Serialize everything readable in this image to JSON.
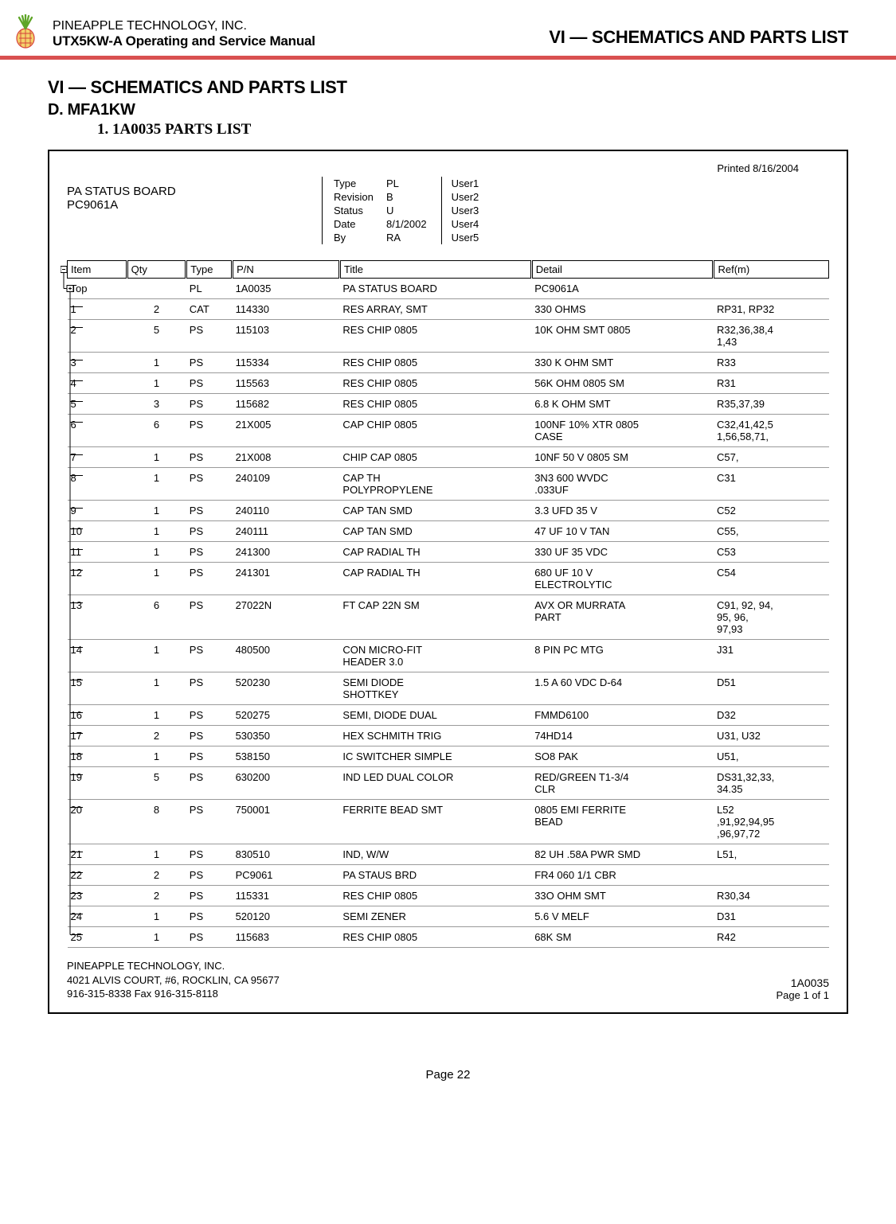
{
  "header": {
    "company": "PINEAPPLE TECHNOLOGY, INC.",
    "manual": "UTX5KW-A Operating and Service Manual",
    "section_right": "VI — SCHEMATICS AND PARTS LIST"
  },
  "headings": {
    "h1": "VI — SCHEMATICS AND PARTS LIST",
    "h2": "D. MFA1KW",
    "h3": "1. 1A0035 PARTS LIST"
  },
  "frame": {
    "printed": "Printed 8/16/2004",
    "board_name": "PA STATUS BOARD",
    "board_code": "PC9061A",
    "meta": {
      "Type": "PL",
      "Revision": "B",
      "Status": "U",
      "Date": "8/1/2002",
      "By": "RA"
    },
    "users": [
      "User1",
      "User2",
      "User3",
      "User4",
      "User5"
    ]
  },
  "columns": [
    "Item",
    "Qty",
    "Type",
    "P/N",
    "Title",
    "Detail",
    "Ref(m)"
  ],
  "top_row": {
    "item": "Top",
    "qty": "",
    "type": "PL",
    "pn": "1A0035",
    "title": "PA STATUS BOARD",
    "detail": "PC9061A",
    "ref": ""
  },
  "rows": [
    {
      "item": "1",
      "qty": "2",
      "type": "CAT",
      "pn": "114330",
      "title": "RES ARRAY, SMT",
      "detail": "330 OHMS",
      "ref": "RP31, RP32"
    },
    {
      "item": "2",
      "qty": "5",
      "type": "PS",
      "pn": "115103",
      "title": "RES CHIP 0805",
      "detail": "10K OHM SMT 0805",
      "ref": "R32,36,38,4\n1,43"
    },
    {
      "item": "3",
      "qty": "1",
      "type": "PS",
      "pn": "115334",
      "title": "RES CHIP 0805",
      "detail": "330 K OHM SMT",
      "ref": "R33"
    },
    {
      "item": "4",
      "qty": "1",
      "type": "PS",
      "pn": "115563",
      "title": "RES CHIP 0805",
      "detail": "56K OHM 0805 SM",
      "ref": "R31"
    },
    {
      "item": "5",
      "qty": "3",
      "type": "PS",
      "pn": "115682",
      "title": "RES CHIP 0805",
      "detail": "6.8 K OHM SMT",
      "ref": "R35,37,39"
    },
    {
      "item": "6",
      "qty": "6",
      "type": "PS",
      "pn": "21X005",
      "title": "CAP CHIP 0805",
      "detail": "100NF 10%  XTR 0805\nCASE",
      "ref": "C32,41,42,5\n1,56,58,71,"
    },
    {
      "item": "7",
      "qty": "1",
      "type": "PS",
      "pn": "21X008",
      "title": "CHIP CAP 0805",
      "detail": "10NF 50 V  0805 SM",
      "ref": "C57,"
    },
    {
      "item": "8",
      "qty": "1",
      "type": "PS",
      "pn": "240109",
      "title": "CAP TH\nPOLYPROPYLENE",
      "detail": "3N3 600 WVDC\n.033UF",
      "ref": "C31"
    },
    {
      "item": "9",
      "qty": "1",
      "type": "PS",
      "pn": "240110",
      "title": "CAP TAN SMD",
      "detail": "3.3 UFD 35 V",
      "ref": "C52"
    },
    {
      "item": "10",
      "qty": "1",
      "type": "PS",
      "pn": "240111",
      "title": "CAP TAN SMD",
      "detail": "47 UF 10 V TAN",
      "ref": "C55,"
    },
    {
      "item": "11",
      "qty": "1",
      "type": "PS",
      "pn": "241300",
      "title": "CAP RADIAL TH",
      "detail": "330 UF 35 VDC",
      "ref": "C53"
    },
    {
      "item": "12",
      "qty": "1",
      "type": "PS",
      "pn": "241301",
      "title": "CAP RADIAL TH",
      "detail": "680 UF 10 V\nELECTROLYTIC",
      "ref": "C54"
    },
    {
      "item": "13",
      "qty": "6",
      "type": "PS",
      "pn": "27022N",
      "title": "FT CAP 22N SM",
      "detail": "AVX OR MURRATA\nPART",
      "ref": "C91, 92, 94,\n95, 96,\n97,93"
    },
    {
      "item": "14",
      "qty": "1",
      "type": "PS",
      "pn": "480500",
      "title": "CON MICRO-FIT\nHEADER 3.0",
      "detail": "8 PIN PC MTG",
      "ref": "J31"
    },
    {
      "item": "15",
      "qty": "1",
      "type": "PS",
      "pn": "520230",
      "title": "SEMI DIODE\nSHOTTKEY",
      "detail": "1.5 A 60 VDC D-64",
      "ref": "D51"
    },
    {
      "item": "16",
      "qty": "1",
      "type": "PS",
      "pn": "520275",
      "title": "SEMI, DIODE DUAL",
      "detail": "FMMD6100",
      "ref": "D32"
    },
    {
      "item": "17",
      "qty": "2",
      "type": "PS",
      "pn": "530350",
      "title": "HEX SCHMITH TRIG",
      "detail": "74HD14",
      "ref": "U31, U32"
    },
    {
      "item": "18",
      "qty": "1",
      "type": "PS",
      "pn": "538150",
      "title": "IC SWITCHER SIMPLE",
      "detail": "SO8 PAK",
      "ref": "U51,"
    },
    {
      "item": "19",
      "qty": "5",
      "type": "PS",
      "pn": "630200",
      "title": "IND LED DUAL COLOR",
      "detail": "RED/GREEN T1-3/4\nCLR",
      "ref": "DS31,32,33,\n34.35"
    },
    {
      "item": "20",
      "qty": "8",
      "type": "PS",
      "pn": "750001",
      "title": "FERRITE BEAD SMT",
      "detail": "0805 EMI FERRITE\nBEAD",
      "ref": "L52\n,91,92,94,95\n,96,97,72"
    },
    {
      "item": "21",
      "qty": "1",
      "type": "PS",
      "pn": "830510",
      "title": "IND, W/W",
      "detail": "82 UH .58A PWR SMD",
      "ref": "L51,"
    },
    {
      "item": "22",
      "qty": "2",
      "type": "PS",
      "pn": "PC9061",
      "title": "PA STAUS BRD",
      "detail": "FR4 060 1/1 CBR",
      "ref": ""
    },
    {
      "item": "23",
      "qty": "2",
      "type": "PS",
      "pn": "115331",
      "title": "RES CHIP 0805",
      "detail": "33O OHM SMT",
      "ref": "R30,34"
    },
    {
      "item": "24",
      "qty": "1",
      "type": "PS",
      "pn": "520120",
      "title": "SEMI ZENER",
      "detail": "5.6 V  MELF",
      "ref": "D31"
    },
    {
      "item": "25",
      "qty": "1",
      "type": "PS",
      "pn": "115683",
      "title": "RES CHIP 0805",
      "detail": "68K SM",
      "ref": "R42"
    }
  ],
  "footer": {
    "addr1": "PINEAPPLE TECHNOLOGY, INC.",
    "addr2": "4021 ALVIS COURT, #6, ROCKLIN, CA 95677",
    "addr3": "916-315-8338   Fax 916-315-8118",
    "part_no": "1A0035",
    "page_of": "Page 1 of   1"
  },
  "page_num": "Page 22",
  "style": {
    "accent": "#d95050",
    "row_border": "#9a9a9a",
    "logo_green": "#5fa528",
    "logo_red": "#d6403a",
    "logo_yellow": "#f3d26b"
  }
}
